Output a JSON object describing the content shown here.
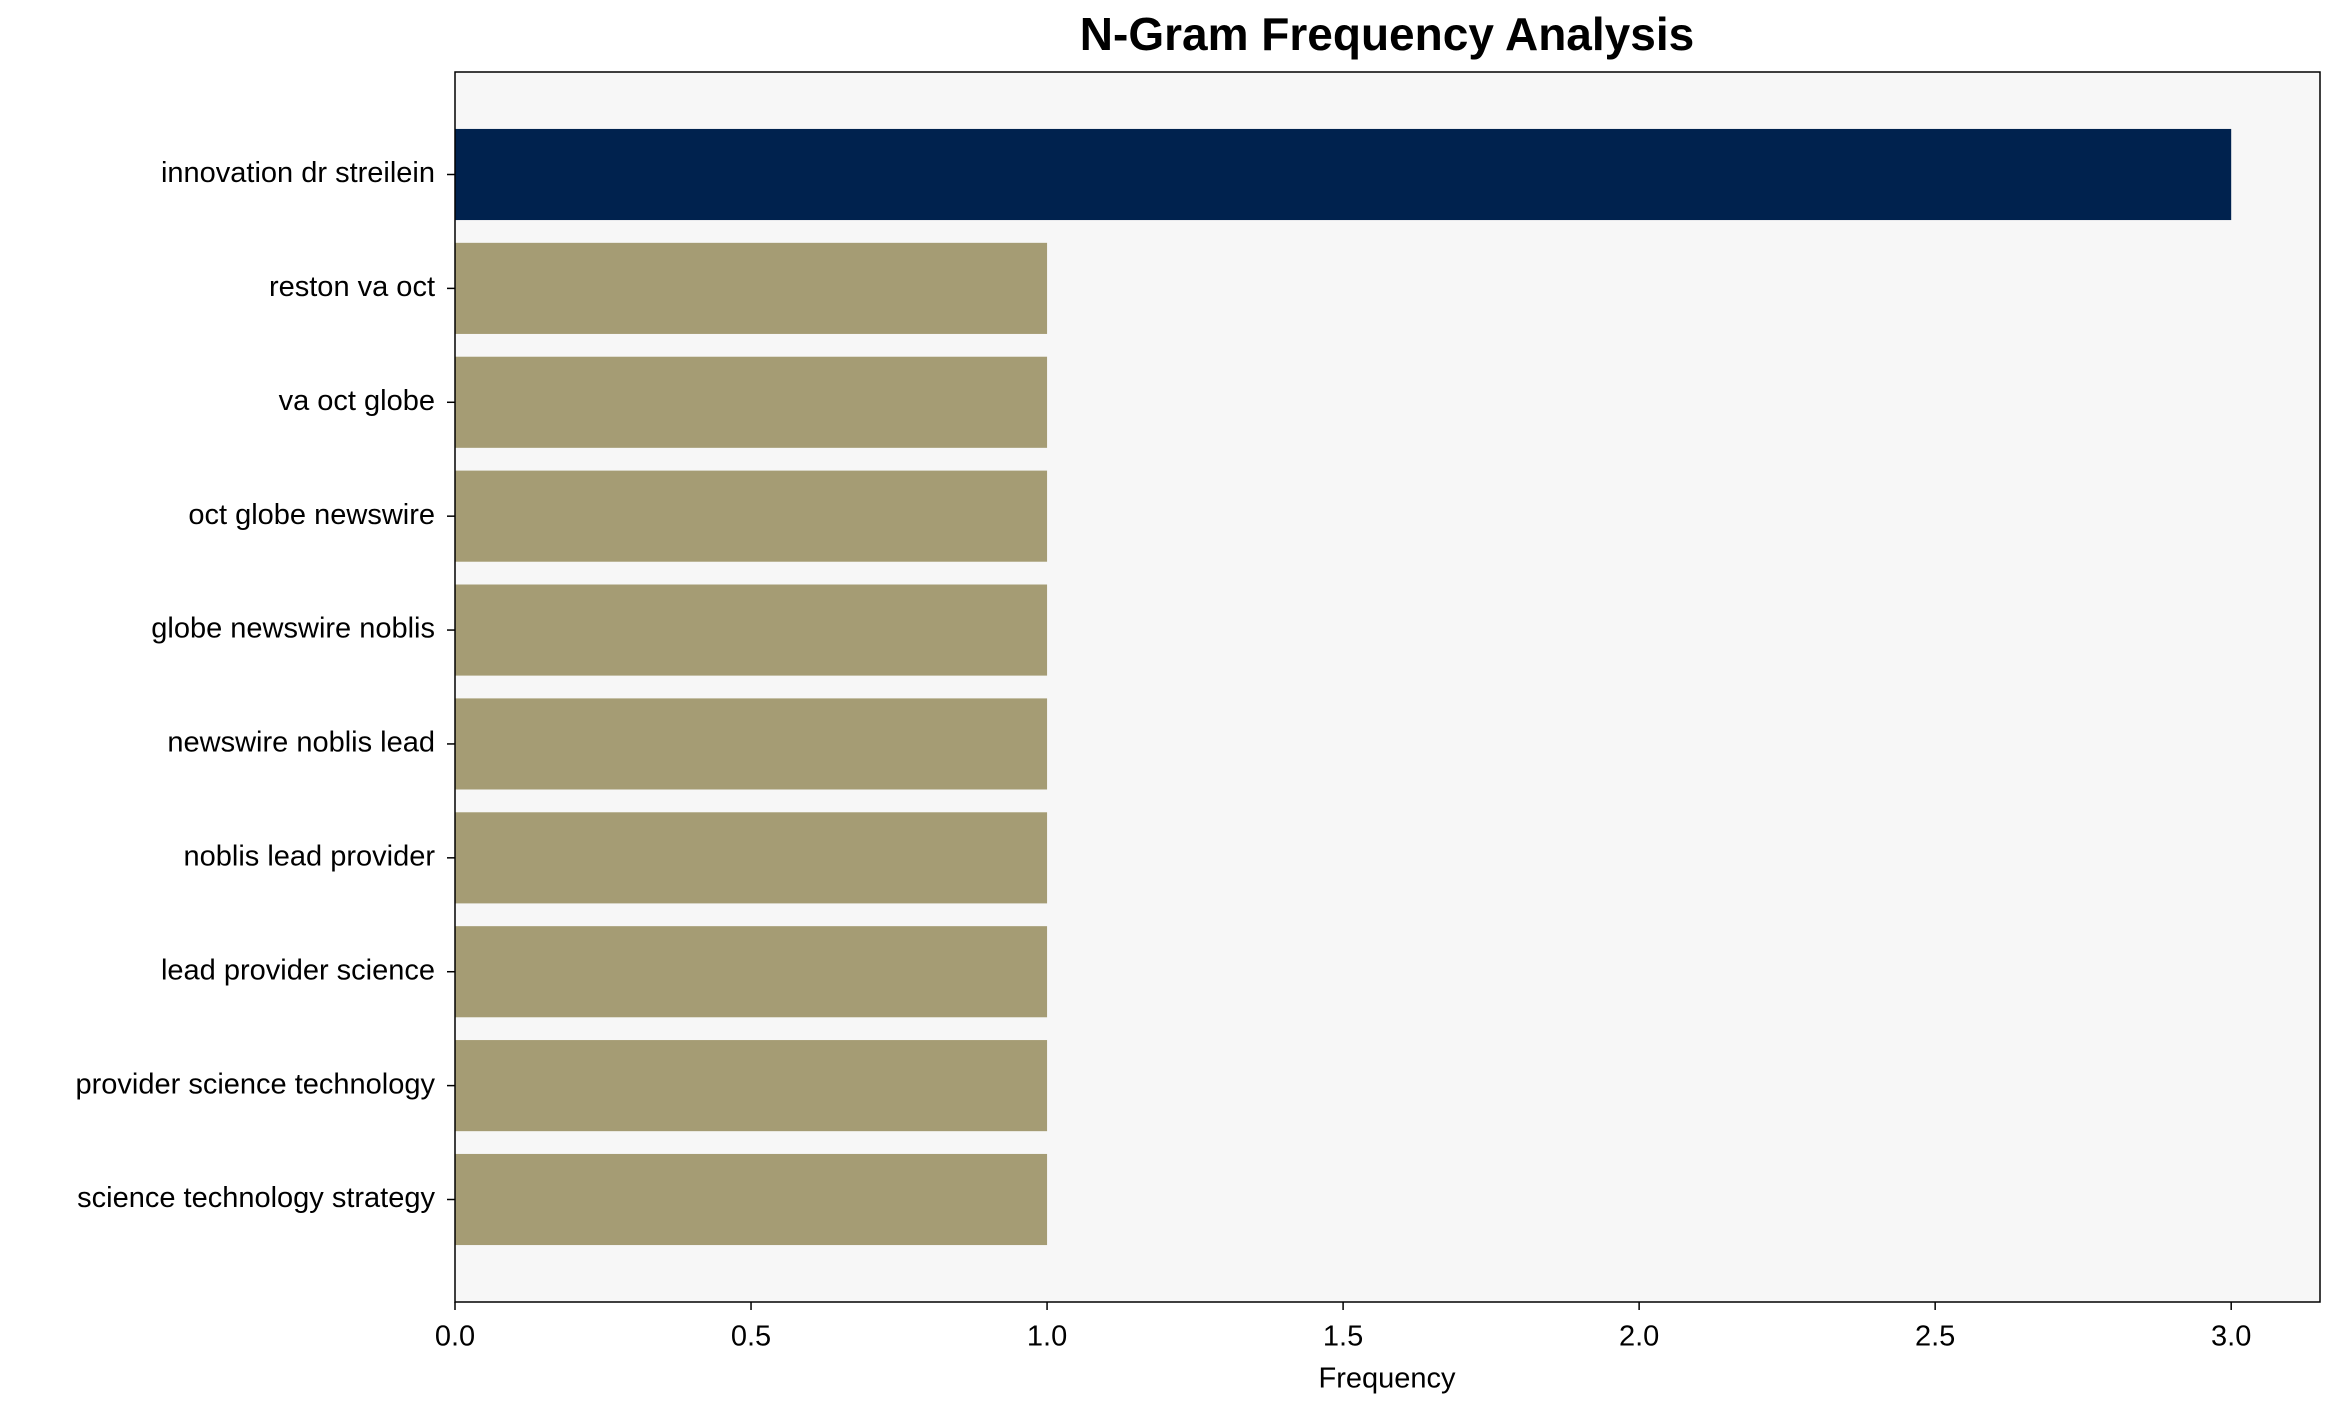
{
  "chart_data": {
    "type": "barh",
    "title": "N-Gram Frequency Analysis",
    "x_label": "Frequency",
    "categories": [
      "innovation dr streilein",
      "reston va oct",
      "va oct globe",
      "oct globe newswire",
      "globe newswire noblis",
      "newswire noblis lead",
      "noblis lead provider",
      "lead provider science",
      "provider science technology",
      "science technology strategy"
    ],
    "values": [
      3,
      1,
      1,
      1,
      1,
      1,
      1,
      1,
      1,
      1
    ],
    "colors": [
      "#00224e",
      "#a59c74",
      "#a59c74",
      "#a59c74",
      "#a59c74",
      "#a59c74",
      "#a59c74",
      "#a59c74",
      "#a59c74",
      "#a59c74"
    ],
    "xlim": [
      0,
      3.15
    ],
    "xticks": [
      {
        "value": 0,
        "label": "0.0"
      },
      0.5,
      {
        "value": 1,
        "label": "1.0"
      },
      1.5,
      {
        "value": 2,
        "label": "2.0"
      },
      2.5,
      {
        "value": 3,
        "label": "3.0"
      }
    ]
  }
}
